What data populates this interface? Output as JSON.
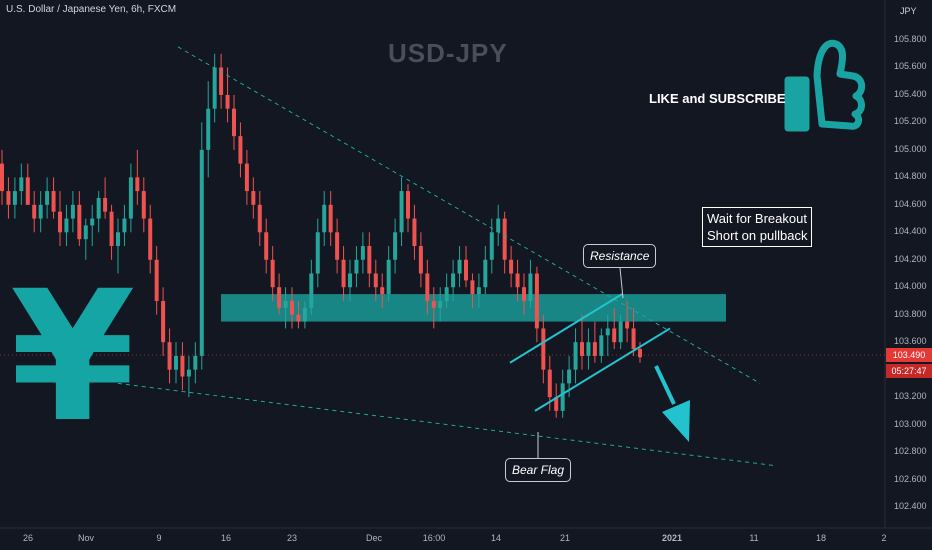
{
  "header": {
    "symbol_title": "U.S. Dollar / Japanese Yen, 6h, FXCM"
  },
  "watermark": "USD-JPY",
  "promo": {
    "text": "LIKE and SUBSCRIBE",
    "icon": "thumbs-up-icon",
    "color": "#1aa3a3"
  },
  "currency_symbol": {
    "glyph": "¥",
    "color": "#15a5a5"
  },
  "notes": {
    "strategy_lines": [
      "Wait for Breakout",
      "Short on pullback"
    ],
    "resistance": "Resistance",
    "bear_flag": "Bear Flag"
  },
  "price_axis": {
    "currency": "JPY",
    "ticks": [
      "105.800",
      "105.600",
      "105.400",
      "105.200",
      "105.000",
      "104.800",
      "104.600",
      "104.400",
      "104.200",
      "104.000",
      "103.800",
      "103.600",
      "103.200",
      "103.000",
      "102.800",
      "102.600",
      "102.400"
    ],
    "last_price": "103.490",
    "countdown": "05:27:47"
  },
  "time_axis": {
    "ticks": [
      "26",
      "Nov",
      "9",
      "16",
      "23",
      "Dec",
      "16:00",
      "14",
      "21",
      "2021",
      "11",
      "18",
      "2"
    ]
  },
  "chart_data": {
    "type": "candlestick",
    "title": "U.S. Dollar / Japanese Yen, 6h, FXCM",
    "ylim": [
      102.3,
      106.1
    ],
    "grid": false,
    "colors": {
      "up": "#26a69a",
      "down": "#ef5350",
      "annotation": "#22c3cf",
      "zone": "#1a9a96"
    },
    "resistance_zone": [
      103.75,
      103.95
    ],
    "trendlines": [
      {
        "name": "upper-dashed",
        "style": "dashed",
        "from": [
          "Oct 29",
          105.75
        ],
        "to": [
          "Jan 7",
          103.3
        ]
      },
      {
        "name": "lower-dashed",
        "style": "dashed",
        "from": [
          "Oct 28",
          103.3
        ],
        "to": [
          "Jan 13",
          102.7
        ]
      },
      {
        "name": "channel-top",
        "style": "solid",
        "from": [
          "Dec 16",
          103.45
        ],
        "to": [
          "Dec 23",
          103.95
        ]
      },
      {
        "name": "channel-bottom",
        "style": "solid",
        "from": [
          "Dec 17",
          103.1
        ],
        "to": [
          "Dec 29",
          103.7
        ]
      }
    ],
    "candles_ohlc": [
      [
        104.9,
        105.0,
        104.6,
        104.7
      ],
      [
        104.7,
        104.8,
        104.5,
        104.6
      ],
      [
        104.6,
        104.8,
        104.5,
        104.7
      ],
      [
        104.7,
        104.9,
        104.6,
        104.8
      ],
      [
        104.8,
        104.9,
        104.6,
        104.6
      ],
      [
        104.6,
        104.7,
        104.4,
        104.5
      ],
      [
        104.5,
        104.7,
        104.4,
        104.6
      ],
      [
        104.6,
        104.8,
        104.5,
        104.7
      ],
      [
        104.7,
        104.8,
        104.5,
        104.55
      ],
      [
        104.55,
        104.7,
        104.3,
        104.4
      ],
      [
        104.4,
        104.6,
        104.3,
        104.5
      ],
      [
        104.5,
        104.7,
        104.4,
        104.6
      ],
      [
        104.6,
        104.7,
        104.3,
        104.35
      ],
      [
        104.35,
        104.5,
        104.2,
        104.45
      ],
      [
        104.45,
        104.6,
        104.3,
        104.5
      ],
      [
        104.5,
        104.7,
        104.4,
        104.65
      ],
      [
        104.65,
        104.8,
        104.5,
        104.55
      ],
      [
        104.55,
        104.6,
        104.2,
        104.3
      ],
      [
        104.3,
        104.5,
        104.1,
        104.4
      ],
      [
        104.4,
        104.6,
        104.3,
        104.5
      ],
      [
        104.5,
        104.9,
        104.4,
        104.8
      ],
      [
        104.8,
        105.0,
        104.6,
        104.7
      ],
      [
        104.7,
        104.8,
        104.4,
        104.5
      ],
      [
        104.5,
        104.6,
        104.1,
        104.2
      ],
      [
        104.2,
        104.3,
        103.8,
        103.9
      ],
      [
        103.9,
        104.0,
        103.5,
        103.6
      ],
      [
        103.6,
        103.7,
        103.3,
        103.4
      ],
      [
        103.4,
        103.6,
        103.3,
        103.5
      ],
      [
        103.5,
        103.6,
        103.25,
        103.35
      ],
      [
        103.35,
        103.5,
        103.2,
        103.4
      ],
      [
        103.4,
        103.6,
        103.3,
        103.5
      ],
      [
        103.5,
        105.2,
        103.4,
        105.0
      ],
      [
        105.0,
        105.5,
        104.8,
        105.3
      ],
      [
        105.3,
        105.7,
        105.2,
        105.6
      ],
      [
        105.6,
        105.7,
        105.3,
        105.4
      ],
      [
        105.4,
        105.6,
        105.2,
        105.3
      ],
      [
        105.3,
        105.4,
        105.0,
        105.1
      ],
      [
        105.1,
        105.2,
        104.8,
        104.9
      ],
      [
        104.9,
        105.0,
        104.6,
        104.7
      ],
      [
        104.7,
        104.8,
        104.5,
        104.6
      ],
      [
        104.6,
        104.7,
        104.3,
        104.4
      ],
      [
        104.4,
        104.5,
        104.1,
        104.2
      ],
      [
        104.2,
        104.3,
        103.9,
        104.0
      ],
      [
        104.0,
        104.1,
        103.8,
        103.85
      ],
      [
        103.85,
        104.0,
        103.7,
        103.9
      ],
      [
        103.9,
        104.0,
        103.7,
        103.8
      ],
      [
        103.8,
        103.9,
        103.7,
        103.75
      ],
      [
        103.75,
        103.9,
        103.7,
        103.85
      ],
      [
        103.85,
        104.2,
        103.8,
        104.1
      ],
      [
        104.1,
        104.5,
        104.0,
        104.4
      ],
      [
        104.4,
        104.7,
        104.3,
        104.6
      ],
      [
        104.6,
        104.7,
        104.3,
        104.4
      ],
      [
        104.4,
        104.5,
        104.1,
        104.2
      ],
      [
        104.2,
        104.3,
        103.9,
        104.0
      ],
      [
        104.0,
        104.2,
        103.9,
        104.1
      ],
      [
        104.1,
        104.3,
        104.0,
        104.2
      ],
      [
        104.2,
        104.4,
        104.1,
        104.3
      ],
      [
        104.3,
        104.4,
        104.0,
        104.1
      ],
      [
        104.1,
        104.2,
        103.9,
        104.0
      ],
      [
        104.0,
        104.1,
        103.85,
        103.95
      ],
      [
        103.95,
        104.3,
        103.9,
        104.2
      ],
      [
        104.2,
        104.5,
        104.1,
        104.4
      ],
      [
        104.4,
        104.8,
        104.3,
        104.7
      ],
      [
        104.7,
        104.75,
        104.4,
        104.5
      ],
      [
        104.5,
        104.6,
        104.2,
        104.3
      ],
      [
        104.3,
        104.4,
        104.0,
        104.1
      ],
      [
        104.1,
        104.2,
        103.8,
        103.9
      ],
      [
        103.9,
        104.0,
        103.7,
        103.85
      ],
      [
        103.85,
        104.0,
        103.75,
        103.9
      ],
      [
        103.9,
        104.1,
        103.85,
        104.0
      ],
      [
        104.0,
        104.2,
        103.9,
        104.1
      ],
      [
        104.1,
        104.3,
        104.0,
        104.2
      ],
      [
        104.2,
        104.3,
        104.0,
        104.05
      ],
      [
        104.05,
        104.1,
        103.85,
        103.95
      ],
      [
        103.95,
        104.1,
        103.85,
        104.0
      ],
      [
        104.0,
        104.3,
        103.95,
        104.2
      ],
      [
        104.2,
        104.5,
        104.1,
        104.4
      ],
      [
        104.4,
        104.6,
        104.3,
        104.5
      ],
      [
        104.5,
        104.55,
        104.1,
        104.2
      ],
      [
        104.2,
        104.3,
        104.0,
        104.1
      ],
      [
        104.1,
        104.2,
        103.9,
        104.0
      ],
      [
        104.0,
        104.1,
        103.8,
        103.9
      ],
      [
        103.9,
        104.2,
        103.85,
        104.1
      ],
      [
        104.1,
        104.15,
        103.6,
        103.7
      ],
      [
        103.7,
        103.8,
        103.3,
        103.4
      ],
      [
        103.4,
        103.5,
        103.1,
        103.2
      ],
      [
        103.2,
        103.3,
        103.05,
        103.1
      ],
      [
        103.1,
        103.4,
        103.05,
        103.3
      ],
      [
        103.3,
        103.5,
        103.2,
        103.4
      ],
      [
        103.4,
        103.7,
        103.3,
        103.6
      ],
      [
        103.6,
        103.8,
        103.4,
        103.5
      ],
      [
        103.5,
        103.7,
        103.4,
        103.6
      ],
      [
        103.6,
        103.75,
        103.45,
        103.5
      ],
      [
        103.5,
        103.7,
        103.45,
        103.65
      ],
      [
        103.65,
        103.8,
        103.5,
        103.7
      ],
      [
        103.7,
        103.85,
        103.55,
        103.6
      ],
      [
        103.6,
        103.8,
        103.55,
        103.75
      ],
      [
        103.75,
        103.9,
        103.6,
        103.7
      ],
      [
        103.7,
        103.85,
        103.5,
        103.55
      ],
      [
        103.55,
        103.6,
        103.45,
        103.49
      ]
    ]
  }
}
